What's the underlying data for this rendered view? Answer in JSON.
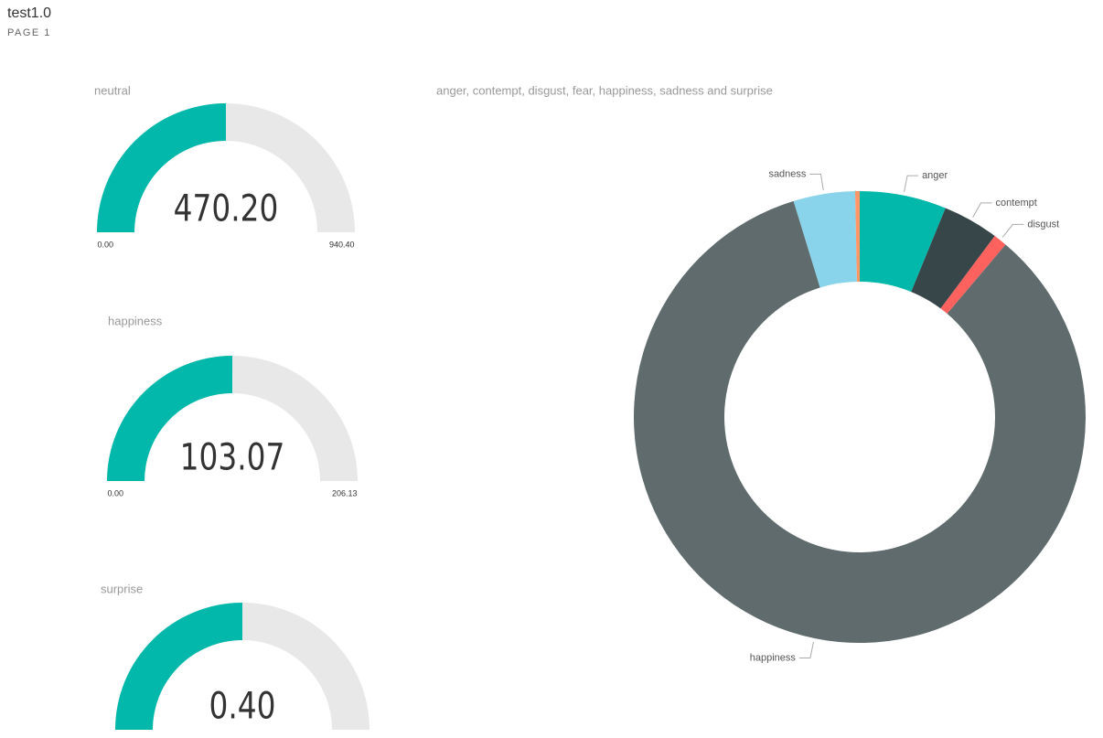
{
  "page": {
    "title": "test1.0",
    "subtitle": "PAGE 1"
  },
  "chart_data": [
    {
      "type": "gauge",
      "title": "neutral",
      "values": [
        470.2
      ],
      "value_labels": [
        "470.20"
      ],
      "ylim": [
        0,
        940.4
      ],
      "yticks": [
        {
          "value": 0,
          "label": "0.00"
        },
        {
          "value": 940.4,
          "label": "940.40"
        }
      ],
      "color": "#01b8aa",
      "track_color": "#e8e8e8"
    },
    {
      "type": "gauge",
      "title": "happiness",
      "values": [
        103.07
      ],
      "value_labels": [
        "103.07"
      ],
      "ylim": [
        0,
        206.13
      ],
      "yticks": [
        {
          "value": 0,
          "label": "0.00"
        },
        {
          "value": 206.13,
          "label": "206.13"
        }
      ],
      "color": "#01b8aa",
      "track_color": "#e8e8e8"
    },
    {
      "type": "gauge",
      "title": "surprise",
      "values": [
        0.4
      ],
      "value_labels": [
        "0.40"
      ],
      "ylim": [
        0,
        0.8
      ],
      "color": "#01b8aa",
      "track_color": "#e8e8e8"
    },
    {
      "type": "donut",
      "title": "anger, contempt, disgust, fear, happiness, sadness and surprise",
      "categories": [
        "anger",
        "contempt",
        "disgust",
        "happiness",
        "sadness",
        null
      ],
      "values": [
        7.6,
        4.9,
        1.2,
        103.07,
        5.4,
        0.4
      ],
      "colors": [
        "#01b8aa",
        "#374649",
        "#fd625e",
        "#5f6b6d",
        "#8ad4eb",
        "#fe9666"
      ]
    }
  ]
}
